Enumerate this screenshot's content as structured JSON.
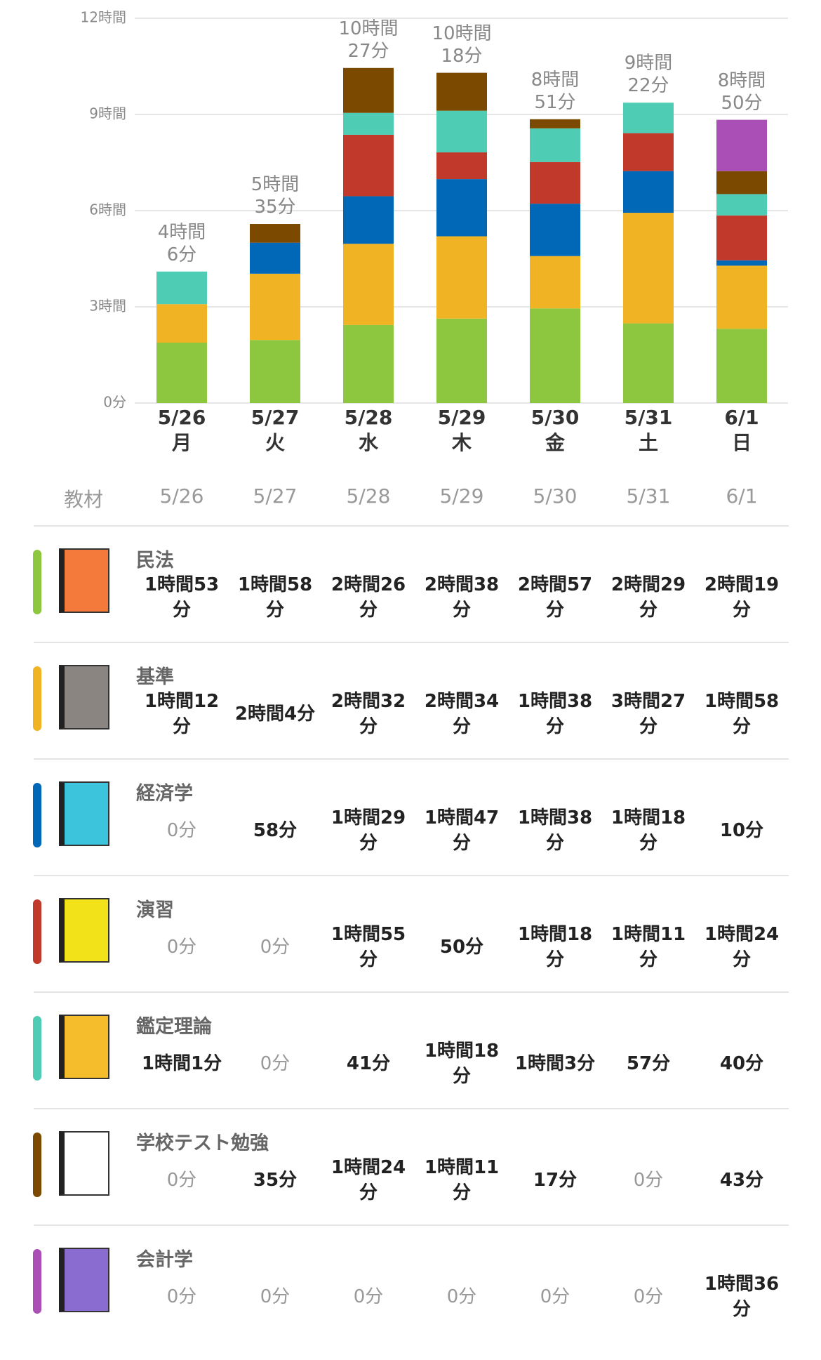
{
  "chart_data": {
    "type": "bar",
    "stacked": true,
    "categories": [
      "5/26",
      "5/27",
      "5/28",
      "5/29",
      "5/30",
      "5/31",
      "6/1"
    ],
    "weekdays": [
      "月",
      "火",
      "水",
      "木",
      "金",
      "土",
      "日"
    ],
    "total_labels": [
      "4時間\n6分",
      "5時間\n35分",
      "10時間\n27分",
      "10時間\n18分",
      "8時間\n51分",
      "9時間\n22分",
      "8時間\n50分"
    ],
    "ylim": [
      0,
      720
    ],
    "yticks": [
      {
        "value": 0,
        "label": "0分"
      },
      {
        "value": 180,
        "label": "3時間"
      },
      {
        "value": 360,
        "label": "6時間"
      },
      {
        "value": 540,
        "label": "9時間"
      },
      {
        "value": 720,
        "label": "12時間"
      }
    ],
    "grid": true,
    "series": [
      {
        "name": "民法",
        "color": "#8dc63f",
        "values": [
          113,
          118,
          146,
          158,
          177,
          149,
          139
        ],
        "value_labels": [
          "1時間53分",
          "1時間58分",
          "2時間26分",
          "2時間38分",
          "2時間57分",
          "2時間29分",
          "2時間19分"
        ]
      },
      {
        "name": "基準",
        "color": "#f0b323",
        "values": [
          72,
          124,
          152,
          154,
          98,
          207,
          118
        ],
        "value_labels": [
          "1時間12分",
          "2時間4分",
          "2時間32分",
          "2時間34分",
          "1時間38分",
          "3時間27分",
          "1時間58分"
        ]
      },
      {
        "name": "経済学",
        "color": "#0068b7",
        "values": [
          0,
          58,
          89,
          107,
          98,
          78,
          10
        ],
        "value_labels": [
          "0分",
          "58分",
          "1時間29分",
          "1時間47分",
          "1時間38分",
          "1時間18分",
          "10分"
        ]
      },
      {
        "name": "演習",
        "color": "#c0392b",
        "values": [
          0,
          0,
          115,
          50,
          78,
          71,
          84
        ],
        "value_labels": [
          "0分",
          "0分",
          "1時間55分",
          "50分",
          "1時間18分",
          "1時間11分",
          "1時間24分"
        ]
      },
      {
        "name": "鑑定理論",
        "color": "#4ecdb4",
        "values": [
          61,
          0,
          41,
          78,
          63,
          57,
          40
        ],
        "value_labels": [
          "1時間1分",
          "0分",
          "41分",
          "1時間18分",
          "1時間3分",
          "57分",
          "40分"
        ]
      },
      {
        "name": "学校テスト勉強",
        "color": "#7b4a00",
        "values": [
          0,
          35,
          84,
          71,
          17,
          0,
          43
        ],
        "value_labels": [
          "0分",
          "35分",
          "1時間24分",
          "1時間11分",
          "17分",
          "0分",
          "43分"
        ]
      },
      {
        "name": "会計学",
        "color": "#a94fb5",
        "values": [
          0,
          0,
          0,
          0,
          0,
          0,
          96
        ],
        "value_labels": [
          "0分",
          "0分",
          "0分",
          "0分",
          "0分",
          "0分",
          "1時間36分"
        ]
      }
    ]
  },
  "table": {
    "header": "教材"
  }
}
